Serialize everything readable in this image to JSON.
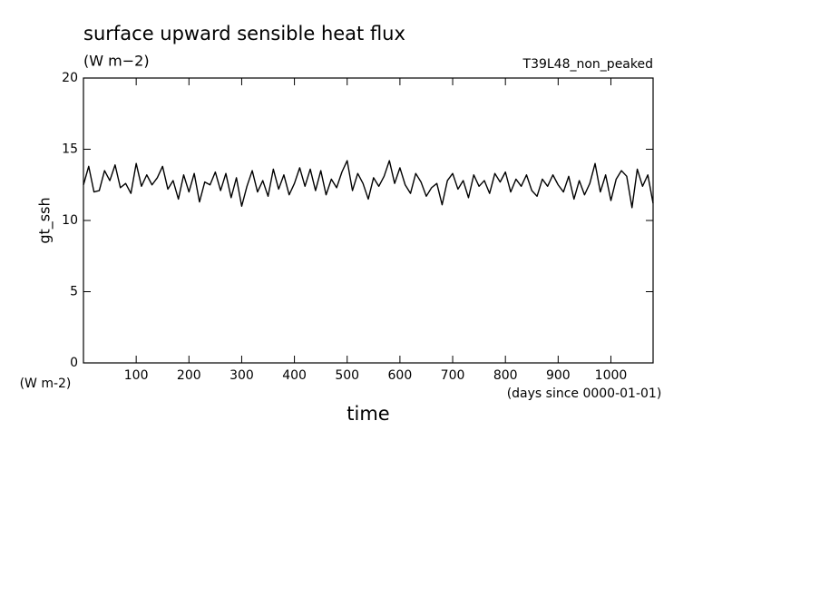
{
  "chart_data": {
    "type": "line",
    "title": "surface upward sensible heat flux",
    "subtitle": "(W m−2)",
    "annotation": "T39L48_non_peaked",
    "y_label": "gt_ssh",
    "y_unit": "(W m-2)",
    "x_label": "time",
    "x_unit": "(days since 0000-01-01)",
    "xlim": [
      0,
      1080
    ],
    "ylim": [
      0,
      20
    ],
    "xticks": [
      100,
      200,
      300,
      400,
      500,
      600,
      700,
      800,
      900,
      1000
    ],
    "yticks": [
      0,
      5,
      10,
      15,
      20
    ],
    "x": [
      0,
      10,
      20,
      30,
      40,
      50,
      60,
      70,
      80,
      90,
      100,
      110,
      120,
      130,
      140,
      150,
      160,
      170,
      180,
      190,
      200,
      210,
      220,
      230,
      240,
      250,
      260,
      270,
      280,
      290,
      300,
      310,
      320,
      330,
      340,
      350,
      360,
      370,
      380,
      390,
      400,
      410,
      420,
      430,
      440,
      450,
      460,
      470,
      480,
      490,
      500,
      510,
      520,
      530,
      540,
      550,
      560,
      570,
      580,
      590,
      600,
      610,
      620,
      630,
      640,
      650,
      660,
      670,
      680,
      690,
      700,
      710,
      720,
      730,
      740,
      750,
      760,
      770,
      780,
      790,
      800,
      810,
      820,
      830,
      840,
      850,
      860,
      870,
      880,
      890,
      900,
      910,
      920,
      930,
      940,
      950,
      960,
      970,
      980,
      990,
      1000,
      1010,
      1020,
      1030,
      1040,
      1050,
      1060,
      1070,
      1080
    ],
    "series": [
      {
        "name": "gt_ssh",
        "color": "#000000",
        "values": [
          12.5,
          13.8,
          12.0,
          12.1,
          13.5,
          12.8,
          13.9,
          12.3,
          12.6,
          11.9,
          14.0,
          12.4,
          13.2,
          12.5,
          13.0,
          13.8,
          12.2,
          12.8,
          11.5,
          13.2,
          12.0,
          13.3,
          11.3,
          12.7,
          12.5,
          13.4,
          12.1,
          13.3,
          11.6,
          13.0,
          11.0,
          12.4,
          13.5,
          12.0,
          12.8,
          11.7,
          13.6,
          12.2,
          13.2,
          11.8,
          12.6,
          13.7,
          12.4,
          13.6,
          12.1,
          13.5,
          11.8,
          12.9,
          12.3,
          13.4,
          14.2,
          12.1,
          13.3,
          12.6,
          11.5,
          13.0,
          12.4,
          13.1,
          14.2,
          12.6,
          13.7,
          12.5,
          11.9,
          13.3,
          12.7,
          11.7,
          12.3,
          12.6,
          11.1,
          12.8,
          13.3,
          12.2,
          12.8,
          11.6,
          13.2,
          12.4,
          12.8,
          11.9,
          13.3,
          12.7,
          13.4,
          12.0,
          12.9,
          12.4,
          13.2,
          12.1,
          11.7,
          12.9,
          12.4,
          13.2,
          12.5,
          12.0,
          13.1,
          11.5,
          12.8,
          11.8,
          12.6,
          14.0,
          12.0,
          13.2,
          11.4,
          12.9,
          13.5,
          13.1,
          10.9,
          13.6,
          12.4,
          13.2,
          11.2
        ]
      }
    ]
  }
}
